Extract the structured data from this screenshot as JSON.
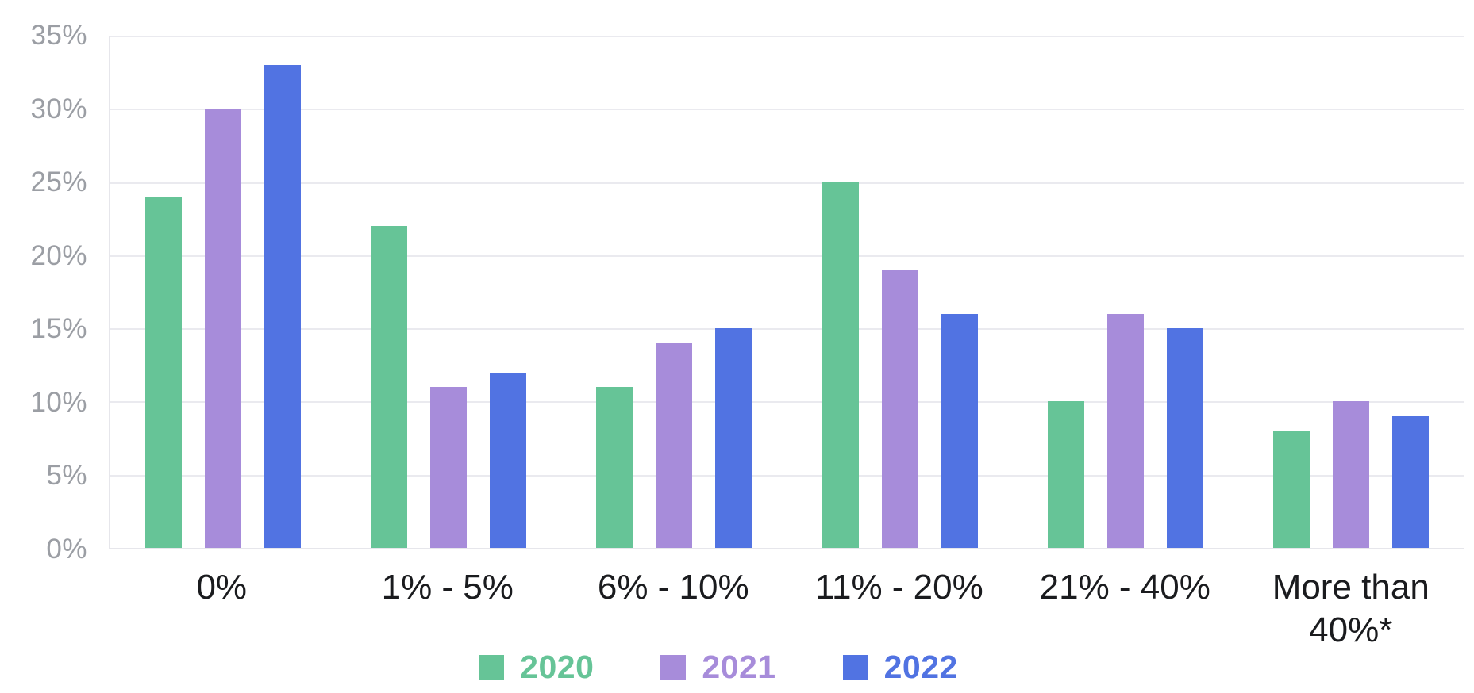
{
  "chart_data": {
    "type": "bar",
    "title": "",
    "xlabel": "",
    "ylabel": "",
    "categories": [
      "0%",
      "1% - 5%",
      "6% - 10%",
      "11% - 20%",
      "21% - 40%",
      "More than 40%*"
    ],
    "series": [
      {
        "name": "2020",
        "color": "#66C497",
        "values": [
          24,
          22,
          11,
          25,
          10,
          8
        ]
      },
      {
        "name": "2021",
        "color": "#A78CDA",
        "values": [
          30,
          11,
          14,
          19,
          16,
          10
        ]
      },
      {
        "name": "2022",
        "color": "#5173E2",
        "values": [
          33,
          12,
          15,
          16,
          15,
          9
        ]
      }
    ],
    "y_ticks": [
      "35%",
      "30%",
      "25%",
      "20%",
      "15%",
      "10%",
      "5%",
      "0%"
    ],
    "ylim": [
      0,
      35
    ],
    "grid": true,
    "legend_position": "bottom"
  },
  "colors": {
    "background": "#ffffff",
    "gridline": "#EAEAEF",
    "axis_border": "#E6E6EB",
    "y_tick_label": "#9B9EA4",
    "x_label": "#1A1B1E"
  }
}
